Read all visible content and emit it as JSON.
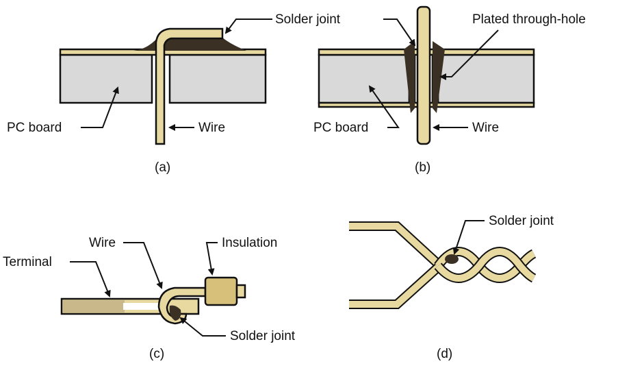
{
  "figure": {
    "panel_a": {
      "caption": "(a)",
      "labels": {
        "solder_joint": "Solder joint",
        "pc_board": "PC board",
        "wire": "Wire"
      }
    },
    "panel_b": {
      "caption": "(b)",
      "labels": {
        "plated_through_hole": "Plated through-hole",
        "pc_board": "PC board",
        "wire": "Wire"
      }
    },
    "panel_c": {
      "caption": "(c)",
      "labels": {
        "wire": "Wire",
        "insulation": "Insulation",
        "terminal": "Terminal",
        "solder_joint": "Solder joint"
      }
    },
    "panel_d": {
      "caption": "(d)",
      "labels": {
        "solder_joint": "Solder joint"
      }
    }
  },
  "colors": {
    "board_fill": "#d9d9d9",
    "copper": "#e8d9a0",
    "solder": "#3a3024",
    "outline": "#111111",
    "background": "#ffffff"
  }
}
